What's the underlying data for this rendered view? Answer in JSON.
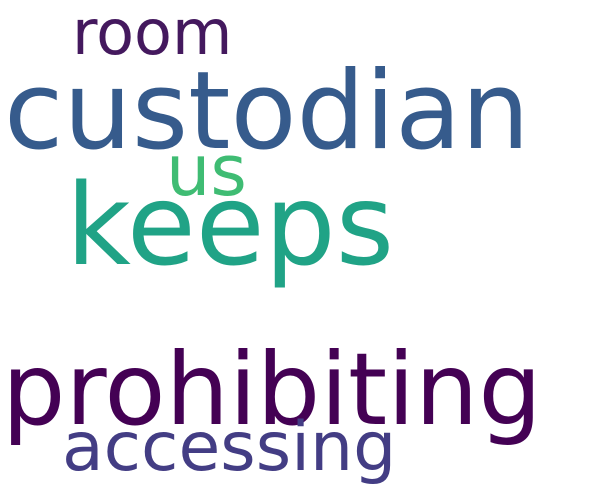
{
  "words": [
    {
      "id": "room",
      "text": "room",
      "color": "#44195e"
    },
    {
      "id": "custodian",
      "text": "custodian",
      "color": "#365b8c"
    },
    {
      "id": "us",
      "text": "us",
      "color": "#3fbc73"
    },
    {
      "id": "keeps",
      "text": "keeps",
      "color": "#20a386"
    },
    {
      "id": "prohibiting",
      "text": "prohibiting",
      "color": "#440154"
    },
    {
      "id": "accessing",
      "text": "accessing",
      "color": "#433d84"
    }
  ]
}
